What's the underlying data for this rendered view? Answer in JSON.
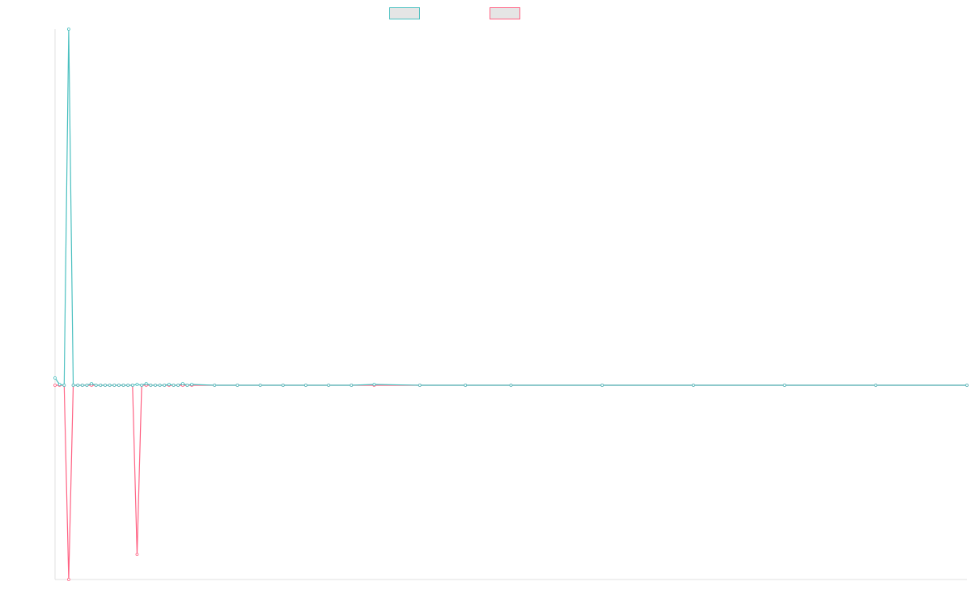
{
  "chart_data": {
    "type": "line",
    "title": "",
    "xlabel": "",
    "ylabel": "",
    "grid": false,
    "legend_placement": "top-center",
    "x": [
      0,
      1,
      2,
      3,
      4,
      5,
      6,
      7,
      8,
      9,
      10,
      11,
      12,
      13,
      14,
      15,
      16,
      17,
      18,
      19,
      20,
      21,
      22,
      23,
      24,
      25,
      26,
      27,
      28,
      29,
      30,
      35,
      40,
      45,
      50,
      55,
      60,
      65,
      70,
      80,
      90,
      100,
      120,
      140,
      160,
      180,
      200
    ],
    "ylim": [
      -240,
      440
    ],
    "series": [
      {
        "name": "",
        "color": "#4bc0c0",
        "fill": "#e5e5e5",
        "values": [
          9,
          1,
          0,
          440,
          0,
          0,
          0,
          0,
          2,
          0,
          0,
          0,
          0,
          0,
          0,
          0,
          0,
          0,
          1,
          0,
          2,
          0,
          0,
          0,
          0,
          1,
          0,
          0,
          2,
          0,
          1,
          0,
          0,
          0,
          0,
          0,
          0,
          0,
          1,
          0,
          0,
          0,
          0,
          0,
          0,
          0,
          0
        ]
      },
      {
        "name": "",
        "color": "#ff6384",
        "fill": "#e5e5e5",
        "values": [
          0,
          0,
          0,
          -240,
          0,
          0,
          0,
          0,
          0,
          0,
          0,
          0,
          0,
          0,
          0,
          0,
          0,
          0,
          -209,
          0,
          0,
          0,
          0,
          0,
          0,
          0,
          0,
          0,
          0,
          0,
          0,
          0,
          0,
          0,
          0,
          0,
          0,
          0,
          0,
          0,
          0,
          0,
          0,
          0,
          0,
          0,
          0
        ]
      }
    ]
  }
}
